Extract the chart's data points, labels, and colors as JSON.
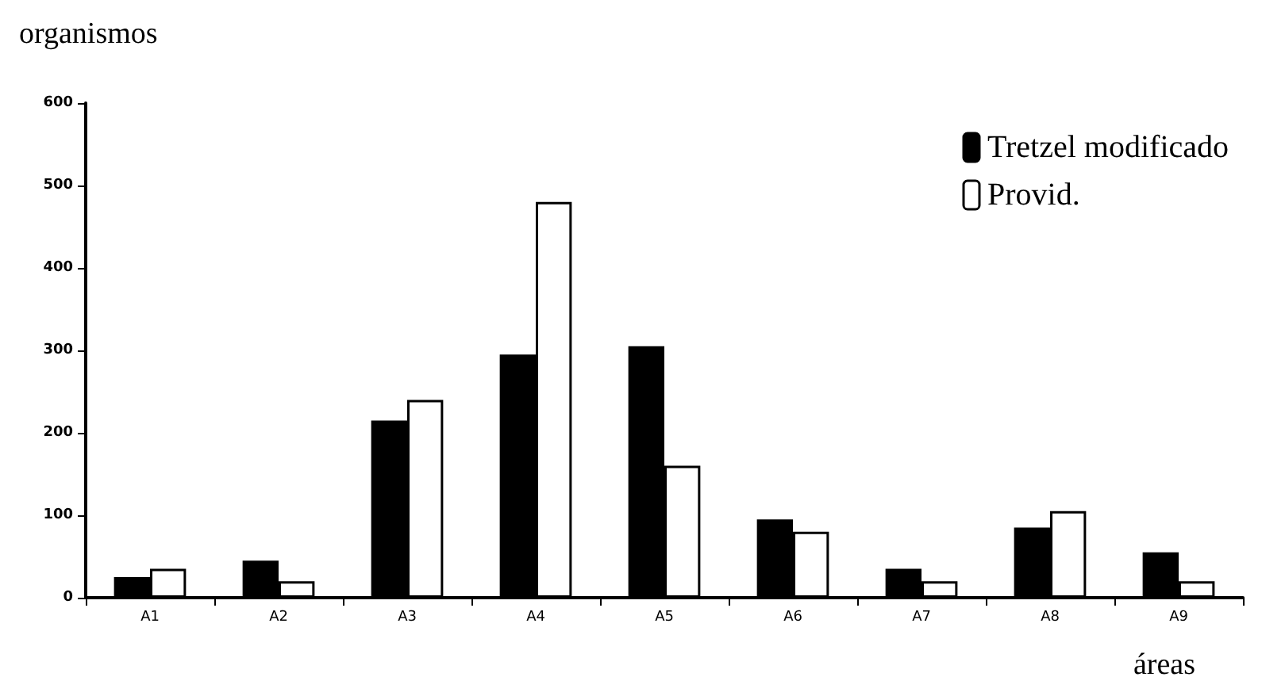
{
  "chart_data": {
    "type": "bar",
    "xlabel": "áreas",
    "ylabel": "organismos",
    "categories": [
      "A1",
      "A2",
      "A3",
      "A4",
      "A5",
      "A6",
      "A7",
      "A8",
      "A9"
    ],
    "series": [
      {
        "name": "Tretzel modificado",
        "color": "#000000",
        "values": [
          25,
          45,
          215,
          295,
          305,
          95,
          35,
          85,
          55
        ]
      },
      {
        "name": "Provid.",
        "color": "#ffffff",
        "values": [
          35,
          20,
          240,
          480,
          160,
          80,
          20,
          105,
          20
        ]
      }
    ],
    "ylim": [
      0,
      600
    ],
    "yticks": [
      0,
      100,
      200,
      300,
      400,
      500,
      600
    ],
    "grid": false,
    "legend": "top right"
  }
}
